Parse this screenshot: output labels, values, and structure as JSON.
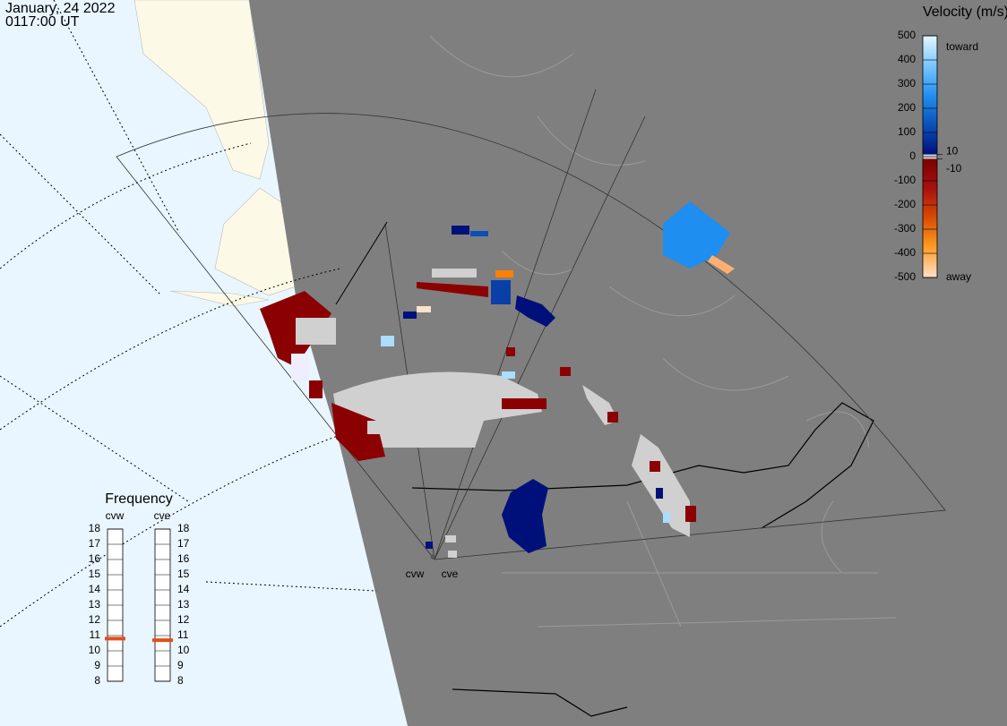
{
  "header": {
    "date": "January, 24 2022",
    "time": "0117:00 UT"
  },
  "velocity_scale": {
    "title": "Velocity (m/s)",
    "ticks": [
      500,
      400,
      300,
      200,
      100,
      0,
      -100,
      -200,
      -300,
      -400,
      -500
    ],
    "inner_ticks": [
      10,
      -10
    ],
    "toward": "toward",
    "away": "away"
  },
  "frequency": {
    "title": "Frequency",
    "ticks": [
      18,
      17,
      16,
      15,
      14,
      13,
      12,
      11,
      10,
      9,
      8
    ],
    "radars": [
      {
        "name": "cvw",
        "value": 10.8
      },
      {
        "name": "cve",
        "value": 10.7
      }
    ]
  },
  "radar_labels": [
    "cvw",
    "cve"
  ]
}
